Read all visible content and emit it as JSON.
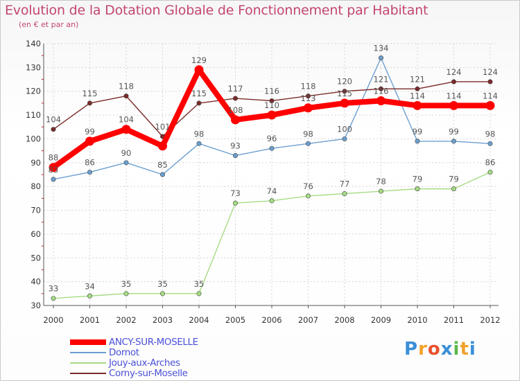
{
  "chart_data": {
    "type": "line",
    "title": "Evolution de la Dotation Globale de Fonctionnement par Habitant",
    "subtitle": "(en € et par an)",
    "xlabel": "",
    "ylabel": "",
    "ylim": [
      30,
      140
    ],
    "yticks": [
      30,
      40,
      50,
      60,
      70,
      80,
      90,
      100,
      110,
      120,
      130,
      140
    ],
    "grid": true,
    "legend": "bottom-left",
    "categories": [
      "2000",
      "2001",
      "2002",
      "2003",
      "2004",
      "2005",
      "2006",
      "2007",
      "2008",
      "2009",
      "2010",
      "2011",
      "2012"
    ],
    "series": [
      {
        "name": "ANCY-SUR-MOSELLE",
        "color": "#ff0000",
        "labelcolor": "#555555",
        "values": [
          88,
          99,
          104,
          97,
          129,
          108,
          110,
          113,
          115,
          116,
          114,
          114,
          114
        ],
        "labels": [
          "88",
          "99",
          "104",
          "",
          "129",
          "108",
          "110",
          "113",
          "115",
          "116",
          "114",
          "114",
          "114"
        ]
      },
      {
        "name": "Dornot",
        "color": "#6b9fcf",
        "labelcolor": "#555555",
        "values": [
          83,
          86,
          90,
          85,
          98,
          93,
          96,
          98,
          100,
          134,
          99,
          99,
          98
        ],
        "labels": [
          "83",
          "86",
          "90",
          "85",
          "98",
          "93",
          "96",
          "98",
          "100",
          "134",
          "99",
          "99",
          "98"
        ]
      },
      {
        "name": "Jouy-aux-Arches",
        "color": "#a5dc83",
        "labelcolor": "#555555",
        "values": [
          33,
          34,
          35,
          35,
          35,
          73,
          74,
          76,
          77,
          78,
          79,
          79,
          86
        ],
        "labels": [
          "33",
          "34",
          "35",
          "35",
          "35",
          "73",
          "74",
          "76",
          "77",
          "78",
          "79",
          "79",
          "86"
        ]
      },
      {
        "name": "Corny-sur-Moselle",
        "color": "#7b2a2a",
        "labelcolor": "#555555",
        "values": [
          104,
          115,
          118,
          101,
          115,
          117,
          116,
          118,
          120,
          121,
          121,
          124,
          124
        ],
        "labels": [
          "104",
          "115",
          "118",
          "101",
          "115",
          "117",
          "116",
          "118",
          "120",
          "121",
          "121",
          "124",
          "124"
        ]
      }
    ]
  },
  "logo": {
    "letters": [
      "P",
      "r",
      "o",
      "x",
      "i",
      "t",
      "i"
    ],
    "colors": [
      "#3a8fd8",
      "#f2a22c",
      "#e8512c",
      "#3a8fd8",
      "#5cb84a",
      "#f2a22c",
      "#3a8fd8"
    ]
  }
}
